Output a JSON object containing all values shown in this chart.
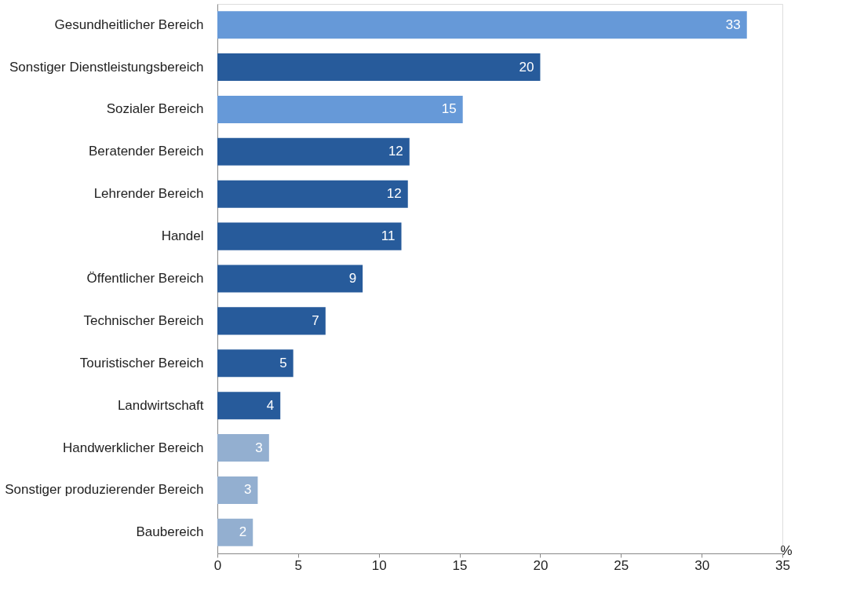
{
  "chart_data": {
    "type": "bar",
    "orientation": "horizontal",
    "categories": [
      "Gesundheitlicher Bereich",
      "Sonstiger Dienstleistungsbereich",
      "Sozialer Bereich",
      "Beratender Bereich",
      "Lehrender Bereich",
      "Handel",
      "Öffentlicher Bereich",
      "Technischer Bereich",
      "Touristischer Bereich",
      "Landwirtschaft",
      "Handwerklicher Bereich",
      "Sonstiger produzierender Bereich",
      "Baubereich"
    ],
    "values": [
      32.8,
      20.0,
      15.2,
      11.9,
      11.8,
      11.4,
      9.0,
      6.7,
      4.7,
      3.9,
      3.2,
      2.5,
      2.2
    ],
    "value_labels": [
      "33",
      "20",
      "15",
      "12",
      "12",
      "11",
      "9",
      "7",
      "5",
      "4",
      "3",
      "3",
      "2"
    ],
    "colors": [
      "#6699d8",
      "#275b9b",
      "#6699d8",
      "#275b9b",
      "#275b9b",
      "#275b9b",
      "#275b9b",
      "#275b9b",
      "#275b9b",
      "#275b9b",
      "#93afd0",
      "#93afd0",
      "#93afd0"
    ],
    "xlabel": "%",
    "xlim": [
      0,
      35
    ],
    "xticks": [
      0,
      5,
      10,
      15,
      20,
      25,
      30,
      35
    ],
    "grid": false
  }
}
